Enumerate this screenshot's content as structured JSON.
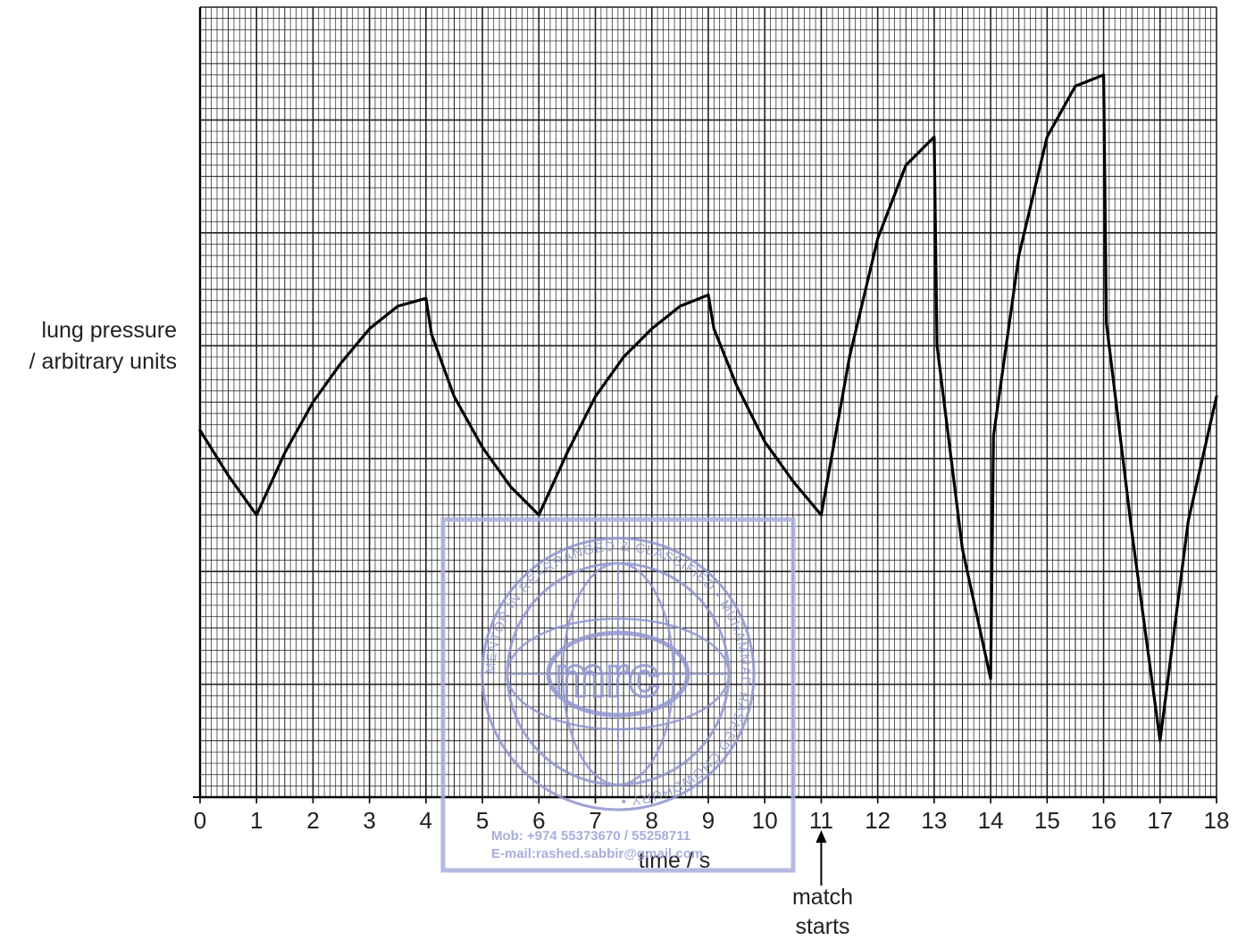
{
  "chart_data": {
    "type": "line",
    "title": "",
    "xlabel": "time / s",
    "ylabel_lines": [
      "lung pressure",
      "/ arbitrary units"
    ],
    "xlim": [
      0,
      18
    ],
    "ylim": [
      0,
      7
    ],
    "x_ticks": [
      "0",
      "1",
      "2",
      "3",
      "4",
      "5",
      "6",
      "7",
      "8",
      "9",
      "10",
      "11",
      "12",
      "13",
      "14",
      "15",
      "16",
      "17",
      "18"
    ],
    "grid": "on",
    "series": [
      {
        "points": [
          [
            0,
            3.25
          ],
          [
            0.5,
            2.85
          ],
          [
            1,
            2.5
          ],
          [
            1.5,
            3.05
          ],
          [
            2,
            3.5
          ],
          [
            2.5,
            3.85
          ],
          [
            3,
            4.15
          ],
          [
            3.5,
            4.35
          ],
          [
            4,
            4.42
          ],
          [
            4.1,
            4.1
          ],
          [
            4.5,
            3.55
          ],
          [
            5,
            3.1
          ],
          [
            5.5,
            2.75
          ],
          [
            6,
            2.5
          ],
          [
            6.5,
            3.05
          ],
          [
            7,
            3.55
          ],
          [
            7.5,
            3.9
          ],
          [
            8,
            4.15
          ],
          [
            8.5,
            4.35
          ],
          [
            9,
            4.45
          ],
          [
            9.1,
            4.15
          ],
          [
            9.5,
            3.65
          ],
          [
            10,
            3.15
          ],
          [
            10.5,
            2.8
          ],
          [
            11,
            2.5
          ],
          [
            11.5,
            3.9
          ],
          [
            12,
            4.95
          ],
          [
            12.5,
            5.6
          ],
          [
            13,
            5.85
          ],
          [
            13.05,
            4.0
          ],
          [
            13.5,
            2.2
          ],
          [
            14,
            1.05
          ],
          [
            14.05,
            3.2
          ],
          [
            14.5,
            4.8
          ],
          [
            15,
            5.85
          ],
          [
            15.5,
            6.3
          ],
          [
            16,
            6.4
          ],
          [
            16.05,
            4.2
          ],
          [
            16.5,
            2.35
          ],
          [
            17,
            0.5
          ],
          [
            17.5,
            2.45
          ],
          [
            18,
            3.55
          ]
        ]
      }
    ],
    "annotations": [
      {
        "text_lines": [
          "match",
          "starts"
        ],
        "x": 11
      }
    ]
  },
  "watermark": {
    "center_text": "mrc",
    "ring_text": "MENTOR IN REARRANGED & CLASSIFIED • MUHAMMAD RASHED CHOWDHURY •",
    "contact_lines": [
      "Mob:  +974 55373670 / 55258711",
      "E-mail:rashed.sabbir@gmail.com"
    ],
    "color": "#8f95cf"
  },
  "colors": {
    "grid": "#231f20",
    "curve": "#000000",
    "text": "#231f20"
  }
}
